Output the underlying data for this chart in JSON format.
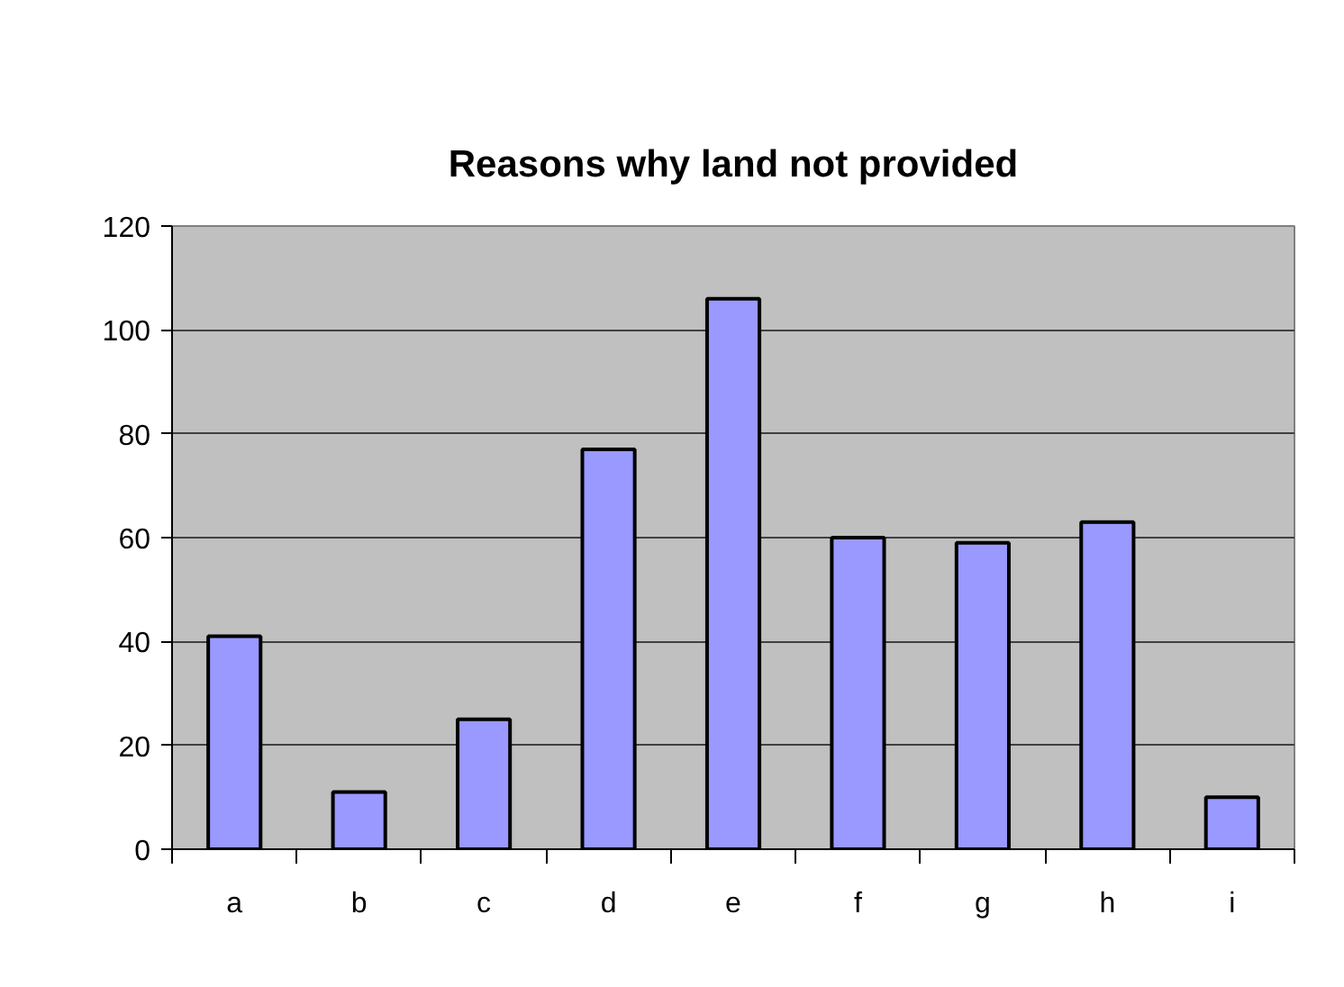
{
  "chart_data": {
    "type": "bar",
    "title": "Reasons why land not provided",
    "categories": [
      "a",
      "b",
      "c",
      "d",
      "e",
      "f",
      "g",
      "h",
      "i"
    ],
    "values": [
      41,
      11,
      25,
      77,
      106,
      60,
      59,
      63,
      10
    ],
    "color": "#9999ff",
    "ylim": [
      0,
      120
    ],
    "yticks": [
      0,
      20,
      40,
      60,
      80,
      100,
      120
    ],
    "grid": "y"
  }
}
